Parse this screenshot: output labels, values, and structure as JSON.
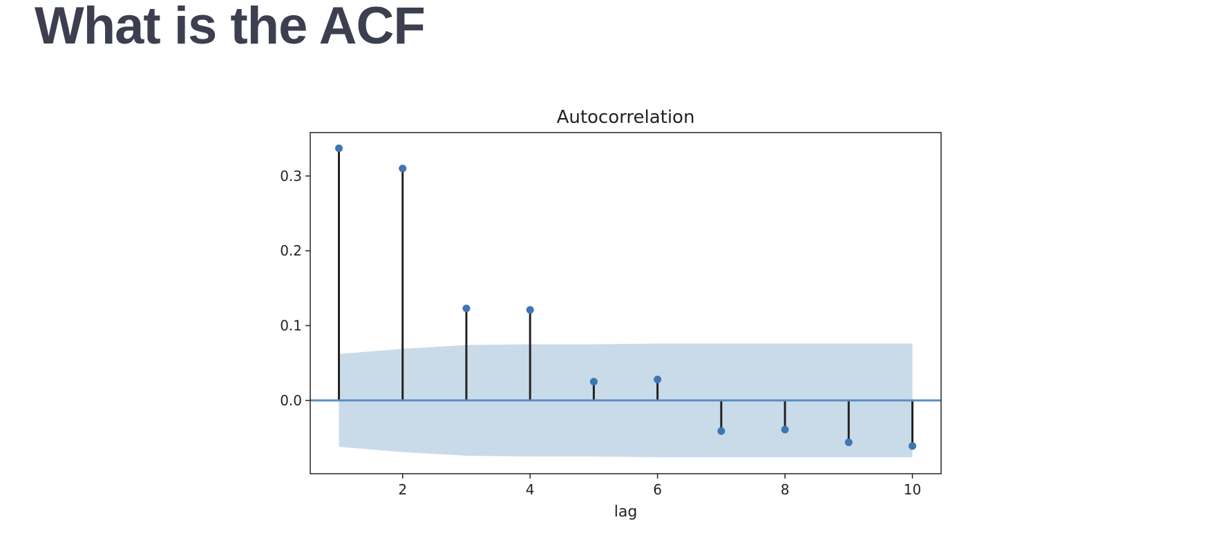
{
  "slide": {
    "title": "What is the ACF"
  },
  "colors": {
    "title_text": "#3b3f4f",
    "stem": "#222222",
    "marker": "#3d76b3",
    "zero_line": "#5b8cbf",
    "confidence_band": "#c9dae9"
  },
  "chart_data": {
    "type": "stem",
    "title": "Autocorrelation",
    "xlabel": "lag",
    "ylabel": "",
    "grid": false,
    "xlim": [
      0.55,
      10.45
    ],
    "ylim": [
      -0.098,
      0.358
    ],
    "xticks": [
      2,
      4,
      6,
      8,
      10
    ],
    "yticks": [
      0.0,
      0.1,
      0.2,
      0.3
    ],
    "ytick_labels": [
      "0.0",
      "0.1",
      "0.2",
      "0.3"
    ],
    "x": [
      1,
      2,
      3,
      4,
      5,
      6,
      7,
      8,
      9,
      10
    ],
    "values": [
      0.337,
      0.31,
      0.123,
      0.121,
      0.025,
      0.028,
      -0.041,
      -0.039,
      -0.056,
      -0.061
    ],
    "confidence_band": {
      "x": [
        1,
        2,
        3,
        4,
        5,
        6,
        7,
        8,
        9,
        10
      ],
      "upper": [
        0.062,
        0.069,
        0.074,
        0.075,
        0.075,
        0.076,
        0.076,
        0.076,
        0.076,
        0.076
      ],
      "lower": [
        -0.062,
        -0.069,
        -0.074,
        -0.075,
        -0.075,
        -0.076,
        -0.076,
        -0.076,
        -0.076,
        -0.076
      ]
    }
  }
}
